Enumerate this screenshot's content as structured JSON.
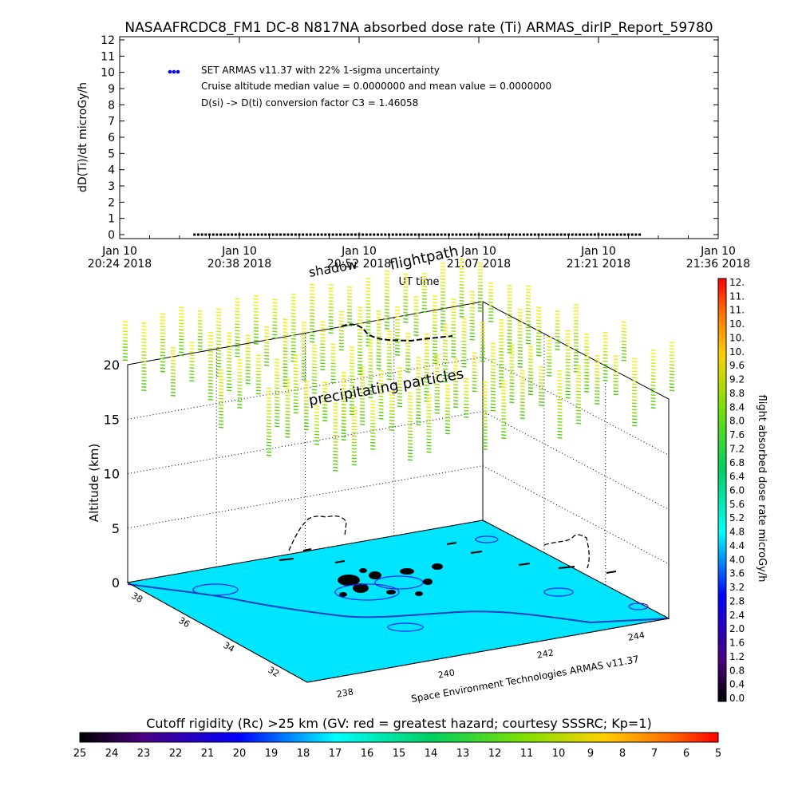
{
  "title": "NASAAFRCDC8_FM1 DC-8   N817NA absorbed dose rate (Ti) ARMAS_dirIP_Report_59780",
  "chart_data": [
    {
      "type": "scatter",
      "ylabel": "dD(Ti)/dt microGy/h",
      "xlabel": "UT time",
      "ylim": [
        0,
        12
      ],
      "y_ticks": [
        "0",
        "1",
        "2",
        "3",
        "4",
        "5",
        "6",
        "7",
        "8",
        "9",
        "10",
        "11",
        "12"
      ],
      "x_ticks": [
        {
          "date": "Jan 10",
          "time": "20:24 2018"
        },
        {
          "date": "Jan 10",
          "time": "20:38 2018"
        },
        {
          "date": "Jan 10",
          "time": "20:52 2018"
        },
        {
          "date": "Jan 10",
          "time": "21:07 2018"
        },
        {
          "date": "Jan 10",
          "time": "21:21 2018"
        },
        {
          "date": "Jan 10",
          "time": "21:36 2018"
        }
      ],
      "legend": [
        "SET ARMAS v11.37 with 22% 1-sigma uncertainty",
        "Cruise altitude median value = 0.0000000 and mean value = 0.0000000",
        "D(si) -> D(ti) conversion factor C3 = 1.46058"
      ],
      "legend_placement": "top-left",
      "series": [
        {
          "name": "SET ARMAS v11.37 with 22% 1-sigma uncertainty",
          "color": "#0000ff",
          "x_range": [
            "20:33 2018",
            "21:27 2018"
          ],
          "y_value": 0
        }
      ]
    },
    {
      "type": "3d-surface",
      "zlabel": "Altitude (km)",
      "z_ticks": [
        "0",
        "5",
        "10",
        "15",
        "20"
      ],
      "x_ticks": [
        "238",
        "240",
        "242",
        "244"
      ],
      "y_ticks": [
        "38",
        "36",
        "34",
        "32"
      ],
      "annotations": {
        "shadow": "shadow",
        "flightpath": "flightpath",
        "precip": "precipitating particles",
        "credit": "Space Environment Technologies ARMAS v11.37"
      },
      "surface_color": "#00e5ff",
      "right_colorbar": {
        "label": "flight absorbed dose rate microGy/h",
        "ticks": [
          "12.",
          "11.",
          "11.",
          "10.",
          "10.",
          "10.",
          "9.6",
          "9.2",
          "8.8",
          "8.4",
          "8.0",
          "7.6",
          "7.2",
          "6.8",
          "6.4",
          "6.0",
          "5.6",
          "5.2",
          "4.8",
          "4.4",
          "4.0",
          "3.6",
          "3.2",
          "2.8",
          "2.4",
          "2.0",
          "1.6",
          "1.2",
          "0.8",
          "0.4",
          "0.0"
        ]
      },
      "bottom_colorbar": {
        "label": "Cutoff rigidity (Rc) >25 km (GV: red = greatest hazard; courtesy SSSRC; Kp=1)",
        "ticks": [
          "25",
          "24",
          "23",
          "22",
          "21",
          "20",
          "19",
          "18",
          "17",
          "16",
          "15",
          "14",
          "13",
          "12",
          "11",
          "10",
          "9",
          "8",
          "7",
          "6",
          "5"
        ]
      }
    }
  ]
}
